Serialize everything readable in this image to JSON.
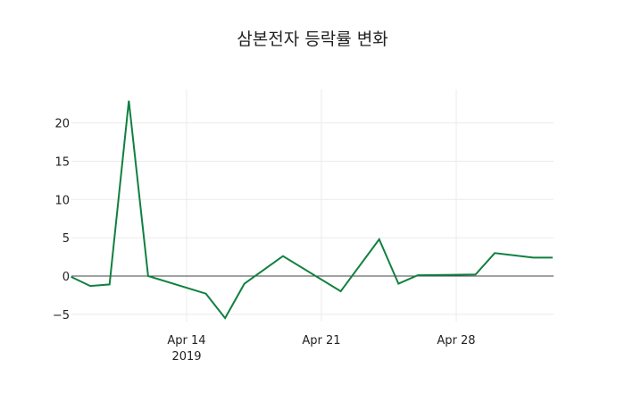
{
  "chart_data": {
    "type": "line",
    "title": "삼본전자 등락률 변화",
    "xlabel": "",
    "ylabel": "",
    "ylim": [
      -6.5,
      24.5
    ],
    "grid": true,
    "legend": "none",
    "line_color": "#108040",
    "x_tick_labels": [
      {
        "label": "Apr 14",
        "sub": "2019",
        "date": "2019-04-14"
      },
      {
        "label": "Apr 21",
        "sub": "",
        "date": "2019-04-21"
      },
      {
        "label": "Apr 28",
        "sub": "",
        "date": "2019-04-28"
      }
    ],
    "y_ticks": [
      -5,
      0,
      5,
      10,
      15,
      20
    ],
    "y_tick_labels": [
      "−5",
      "0",
      "5",
      "10",
      "15",
      "20"
    ],
    "x": [
      "2019-04-08",
      "2019-04-09",
      "2019-04-10",
      "2019-04-11",
      "2019-04-12",
      "2019-04-15",
      "2019-04-16",
      "2019-04-17",
      "2019-04-19",
      "2019-04-22",
      "2019-04-24",
      "2019-04-25",
      "2019-04-26",
      "2019-04-29",
      "2019-04-30",
      "2019-05-02",
      "2019-05-03"
    ],
    "series": [
      {
        "name": "등락률",
        "values": [
          -0.1,
          -1.3,
          -1.1,
          22.9,
          0.0,
          -2.3,
          -5.5,
          -1.0,
          2.6,
          -2.0,
          4.8,
          -1.0,
          0.1,
          0.2,
          3.0,
          2.4,
          2.4
        ]
      }
    ]
  }
}
